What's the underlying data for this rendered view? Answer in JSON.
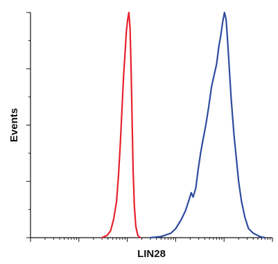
{
  "chart_data": {
    "type": "line",
    "title": "",
    "xlabel": "LIN28",
    "ylabel": "Events",
    "x_scale": "log",
    "x_ticks": [
      1,
      10,
      100,
      1000,
      10000,
      100000
    ],
    "xlim": [
      1,
      100000
    ],
    "ylim": [
      0,
      100
    ],
    "grid": false,
    "y_major_ticks": [
      0,
      25,
      50,
      75,
      100
    ],
    "y_minor_ticks": [
      12.5,
      37.5,
      62.5,
      87.5
    ],
    "series": [
      {
        "color": "#e8202a",
        "x": [
          30,
          38,
          45,
          52,
          60,
          66,
          72,
          78,
          84,
          90,
          96,
          102,
          108,
          114,
          120,
          126,
          132,
          140,
          150,
          165,
          185
        ],
        "y": [
          0,
          1,
          3,
          8,
          16,
          28,
          42,
          58,
          72,
          82,
          92,
          97,
          100,
          93,
          75,
          52,
          30,
          14,
          5,
          1,
          0
        ]
      },
      {
        "color": "#2e4a9e",
        "x": [
          300,
          500,
          800,
          1000,
          1300,
          1600,
          1900,
          2100,
          2300,
          2600,
          2900,
          3300,
          3700,
          4200,
          4800,
          5500,
          6200,
          7000,
          7800,
          8600,
          9400,
          10200,
          11000,
          11800,
          12600,
          14000,
          16000,
          18000,
          20000,
          23000,
          27000,
          32000,
          40000,
          55000,
          70000
        ],
        "y": [
          0,
          0.5,
          2,
          4,
          8,
          12,
          17,
          20,
          18,
          22,
          30,
          38,
          44,
          50,
          58,
          67,
          72,
          77,
          85,
          90,
          96,
          100,
          97,
          88,
          78,
          62,
          46,
          35,
          25,
          16,
          9,
          4,
          2,
          0.5,
          0
        ]
      }
    ]
  }
}
